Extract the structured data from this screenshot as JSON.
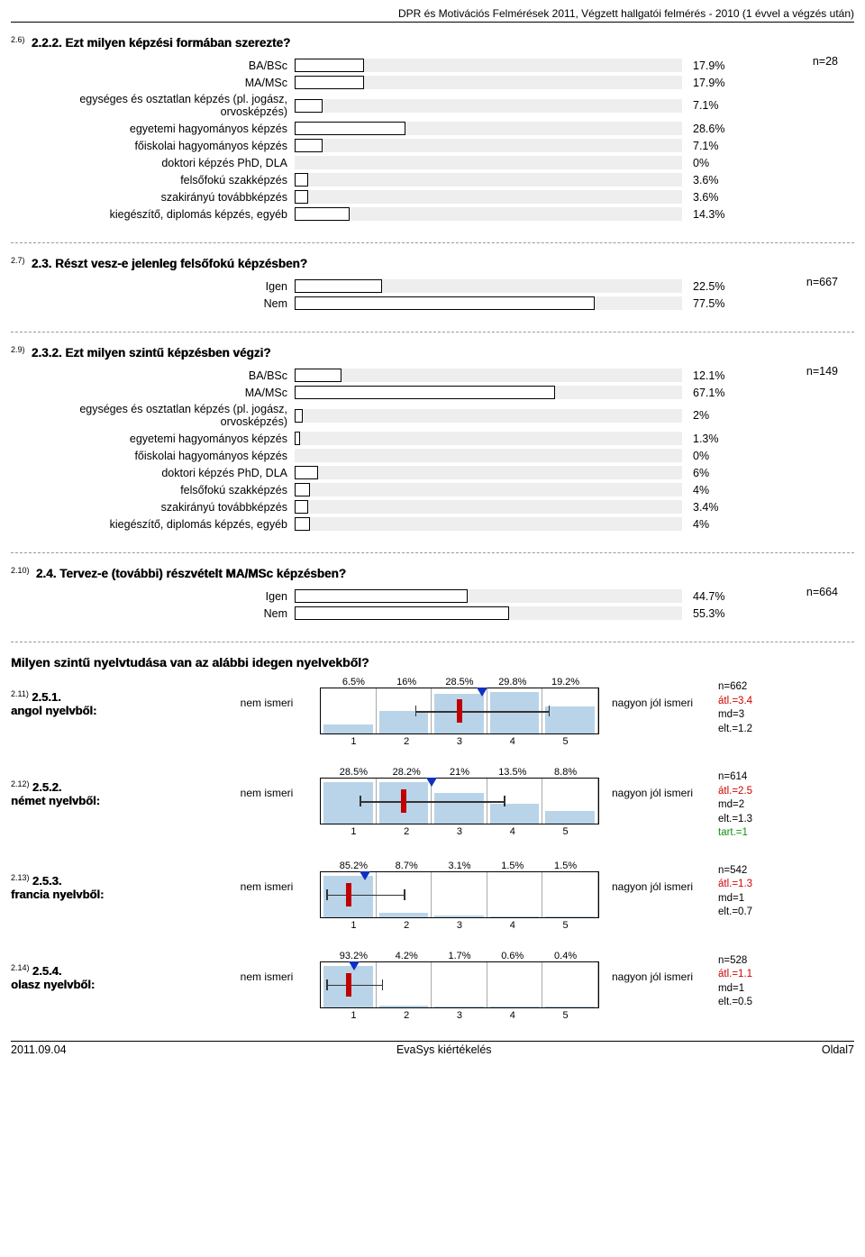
{
  "header": "DPR és Motivációs Felmérések 2011, Végzett hallgatói felmérés - 2010 (1 évvel a végzés után)",
  "q26": {
    "num": "2.6)",
    "title": "2.2.2. Ezt milyen képzési formában szerezte?",
    "n": "n=28",
    "rows": [
      {
        "label": "BA/BSc",
        "pct": 17.9,
        "txt": "17.9%"
      },
      {
        "label": "MA/MSc",
        "pct": 17.9,
        "txt": "17.9%"
      },
      {
        "label": "egységes és osztatlan képzés (pl. jogász, orvosképzés)",
        "pct": 7.1,
        "txt": "7.1%"
      },
      {
        "label": "egyetemi hagyományos képzés",
        "pct": 28.6,
        "txt": "28.6%"
      },
      {
        "label": "főiskolai hagyományos képzés",
        "pct": 7.1,
        "txt": "7.1%"
      },
      {
        "label": "doktori képzés PhD, DLA",
        "pct": 0,
        "txt": "0%"
      },
      {
        "label": "felsőfokú szakképzés",
        "pct": 3.6,
        "txt": "3.6%"
      },
      {
        "label": "szakirányú továbbképzés",
        "pct": 3.6,
        "txt": "3.6%"
      },
      {
        "label": "kiegészítő, diplomás képzés, egyéb",
        "pct": 14.3,
        "txt": "14.3%"
      }
    ]
  },
  "q27": {
    "num": "2.7)",
    "title": "2.3. Részt vesz-e jelenleg felsőfokú képzésben?",
    "n": "n=667",
    "rows": [
      {
        "label": "Igen",
        "pct": 22.5,
        "txt": "22.5%"
      },
      {
        "label": "Nem",
        "pct": 77.5,
        "txt": "77.5%"
      }
    ]
  },
  "q29": {
    "num": "2.9)",
    "title": "2.3.2. Ezt milyen szintű képzésben végzi?",
    "n": "n=149",
    "rows": [
      {
        "label": "BA/BSc",
        "pct": 12.1,
        "txt": "12.1%"
      },
      {
        "label": "MA/MSc",
        "pct": 67.1,
        "txt": "67.1%"
      },
      {
        "label": "egységes és osztatlan képzés (pl. jogász, orvosképzés)",
        "pct": 2,
        "txt": "2%"
      },
      {
        "label": "egyetemi hagyományos képzés",
        "pct": 1.3,
        "txt": "1.3%"
      },
      {
        "label": "főiskolai hagyományos képzés",
        "pct": 0,
        "txt": "0%"
      },
      {
        "label": "doktori képzés PhD, DLA",
        "pct": 6,
        "txt": "6%"
      },
      {
        "label": "felsőfokú szakképzés",
        "pct": 4,
        "txt": "4%"
      },
      {
        "label": "szakirányú továbbképzés",
        "pct": 3.4,
        "txt": "3.4%"
      },
      {
        "label": "kiegészítő, diplomás képzés, egyéb",
        "pct": 4,
        "txt": "4%"
      }
    ]
  },
  "q210": {
    "num": "2.10)",
    "title": "2.4. Tervez-e (további) részvételt MA/MSc képzésben?",
    "n": "n=664",
    "rows": [
      {
        "label": "Igen",
        "pct": 44.7,
        "txt": "44.7%"
      },
      {
        "label": "Nem",
        "pct": 55.3,
        "txt": "55.3%"
      }
    ]
  },
  "langSection": "Milyen szintű nyelvtudása van az alábbi idegen nyelvekből?",
  "endLeft": "nem ismeri",
  "endRight": "nagyon jól ismeri",
  "ticks": [
    "1",
    "2",
    "3",
    "4",
    "5"
  ],
  "langs": [
    {
      "num": "2.11)",
      "qtitle": "2.5.1.",
      "sub": "angol nyelvből:",
      "pcts": [
        "6.5%",
        "16%",
        "28.5%",
        "29.8%",
        "19.2%"
      ],
      "bars": [
        6.5,
        16,
        28.5,
        29.8,
        19.2
      ],
      "mean": 3.4,
      "median": 3,
      "dev": 1.2,
      "stats": [
        "n=662",
        "átl.=3.4",
        "md=3",
        "elt.=1.2"
      ]
    },
    {
      "num": "2.12)",
      "qtitle": "2.5.2.",
      "sub": "német nyelvből:",
      "pcts": [
        "28.5%",
        "28.2%",
        "21%",
        "13.5%",
        "8.8%"
      ],
      "bars": [
        28.5,
        28.2,
        21,
        13.5,
        8.8
      ],
      "mean": 2.5,
      "median": 2,
      "dev": 1.3,
      "stats": [
        "n=614",
        "átl.=2.5",
        "md=2",
        "elt.=1.3",
        "tart.=1"
      ]
    },
    {
      "num": "2.13)",
      "qtitle": "2.5.3.",
      "sub": "francia nyelvből:",
      "pcts": [
        "85.2%",
        "8.7%",
        "3.1%",
        "1.5%",
        "1.5%"
      ],
      "bars": [
        85.2,
        8.7,
        3.1,
        1.5,
        1.5
      ],
      "mean": 1.3,
      "median": 1,
      "dev": 0.7,
      "stats": [
        "n=542",
        "átl.=1.3",
        "md=1",
        "elt.=0.7"
      ]
    },
    {
      "num": "2.14)",
      "qtitle": "2.5.4.",
      "sub": "olasz nyelvből:",
      "pcts": [
        "93.2%",
        "4.2%",
        "1.7%",
        "0.6%",
        "0.4%"
      ],
      "bars": [
        93.2,
        4.2,
        1.7,
        0.6,
        0.4
      ],
      "mean": 1.1,
      "median": 1,
      "dev": 0.5,
      "stats": [
        "n=528",
        "átl.=1.1",
        "md=1",
        "elt.=0.5"
      ]
    }
  ],
  "footer": {
    "left": "2011.09.04",
    "center": "EvaSys kiértékelés",
    "right": "Oldal7"
  }
}
